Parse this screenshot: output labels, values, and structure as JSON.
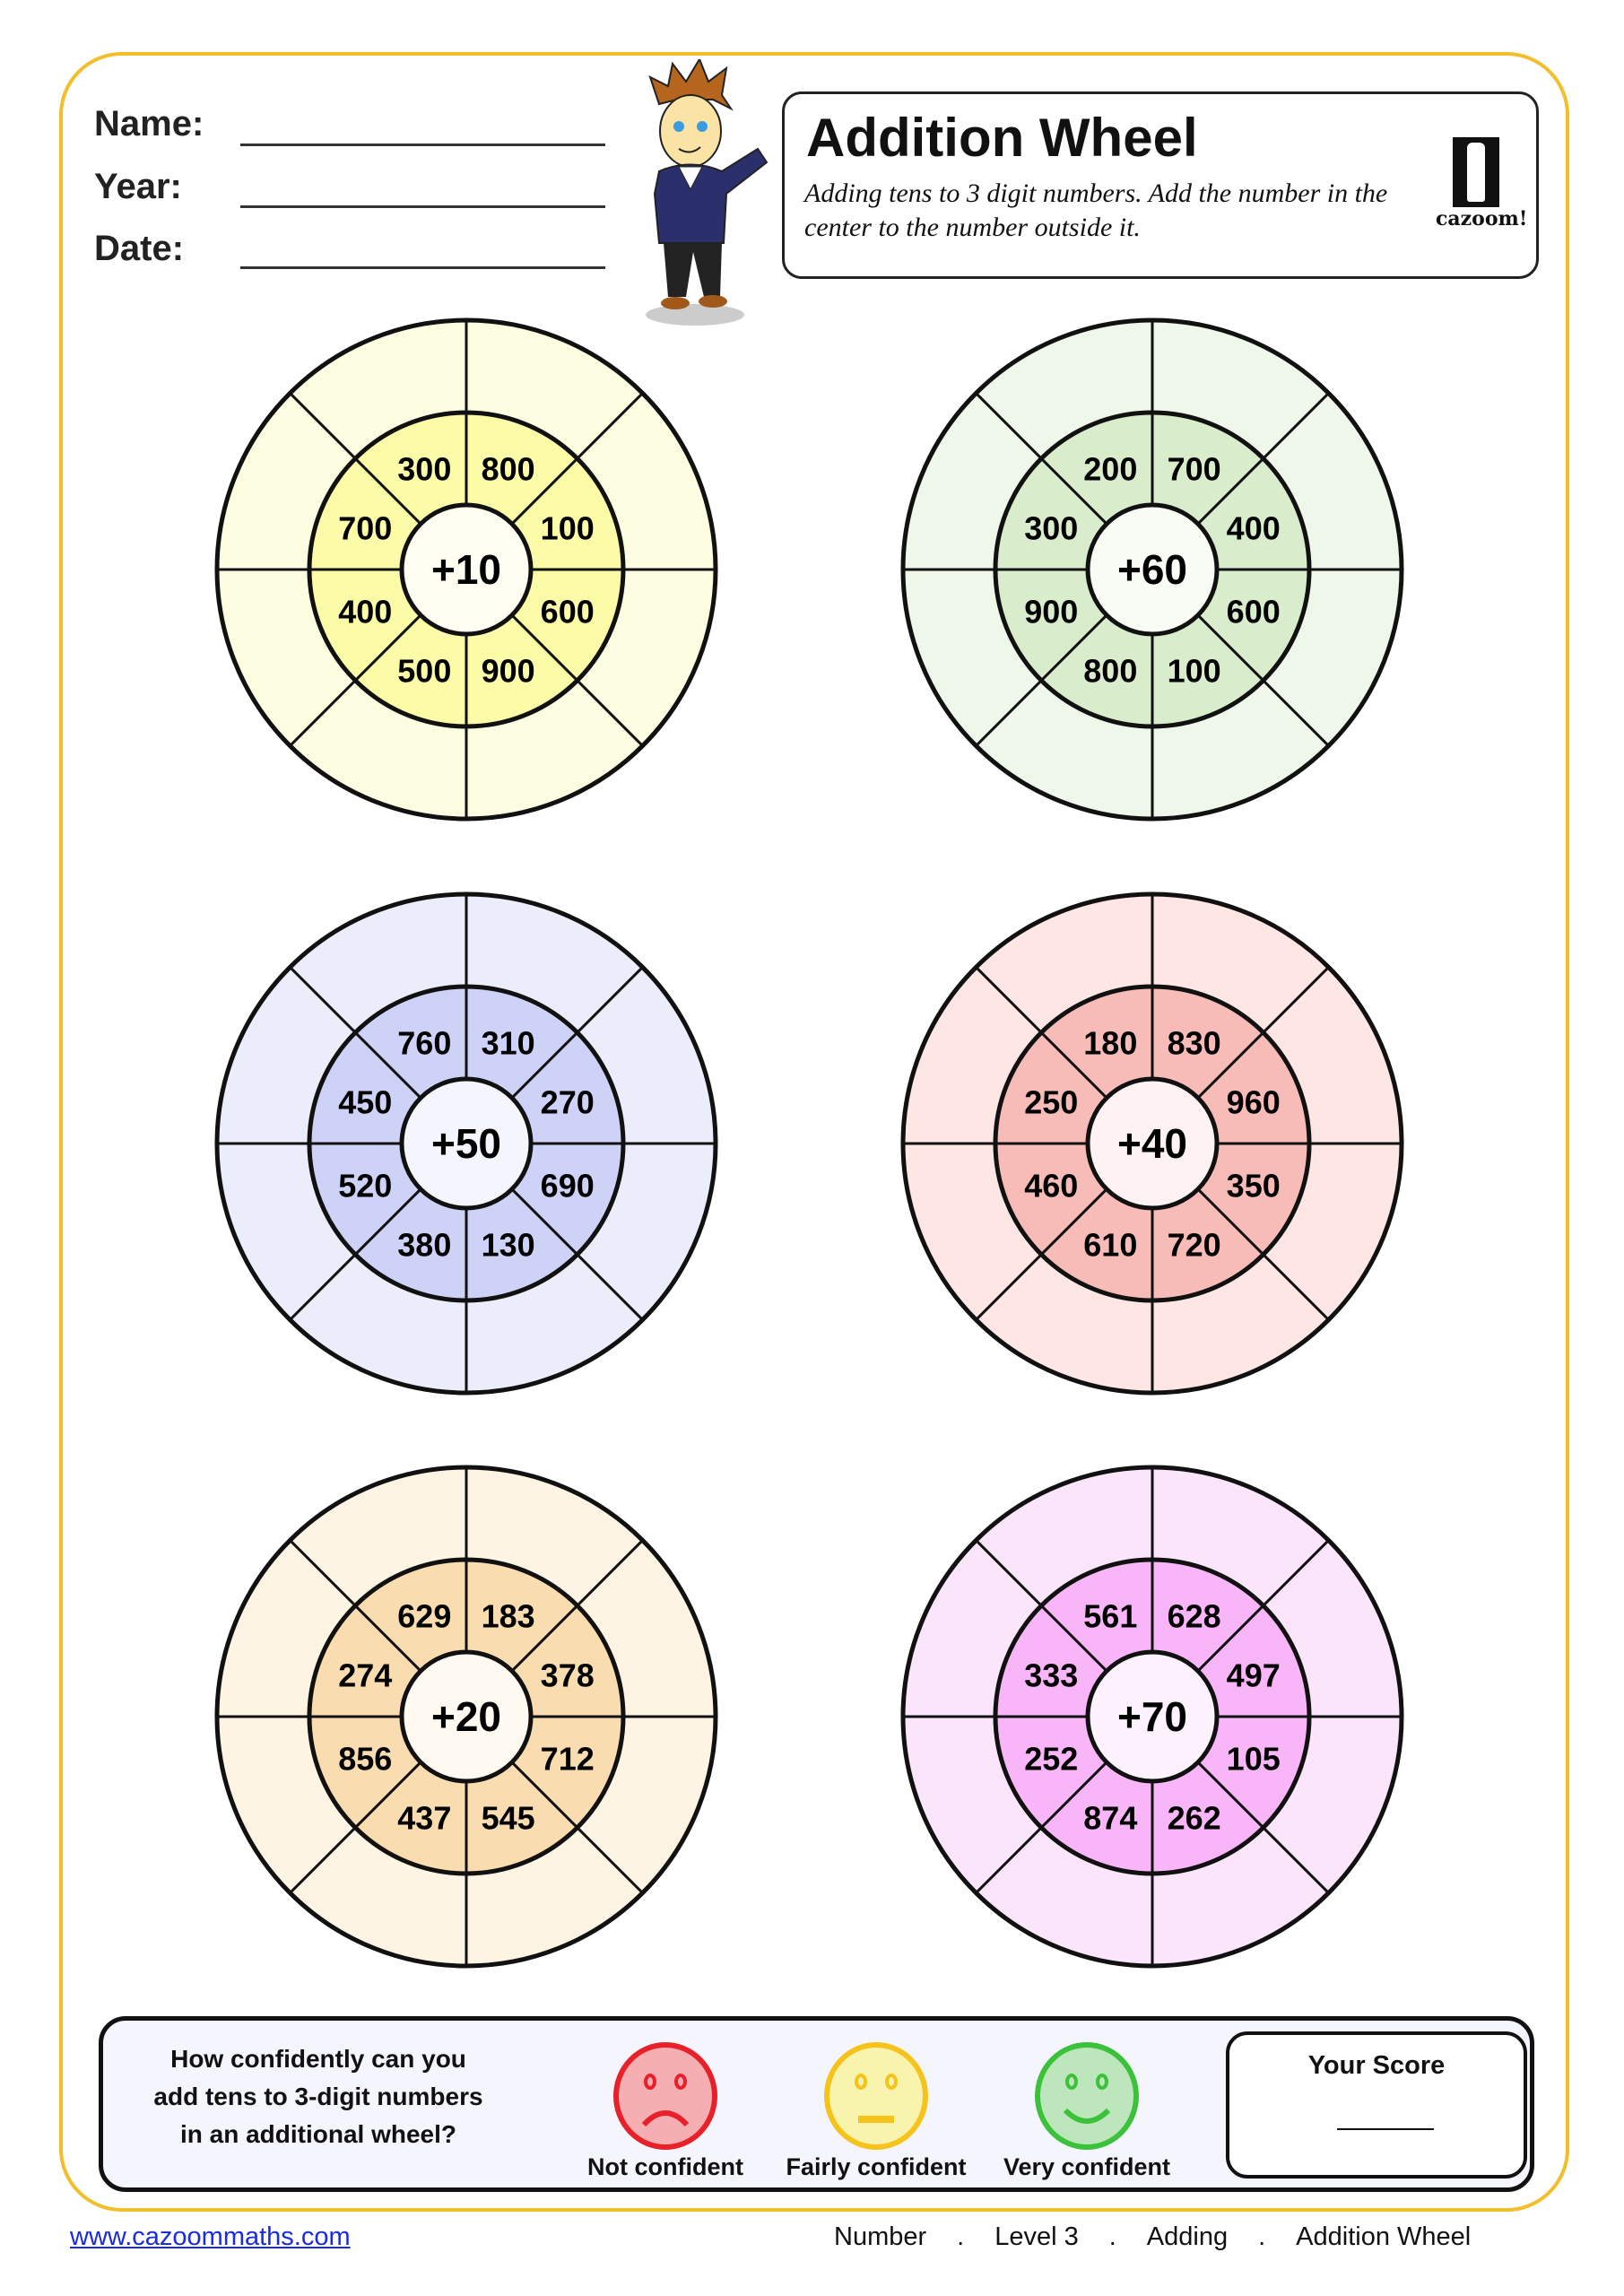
{
  "header": {
    "fields": [
      {
        "label": "Name:"
      },
      {
        "label": "Year:"
      },
      {
        "label": "Date:"
      }
    ],
    "title": "Addition Wheel",
    "subtitle": "Adding tens to 3 digit numbers. Add the number in the center to the number outside it.",
    "logo_text": "cazoom!"
  },
  "wheels": [
    {
      "center": "+10",
      "numbers": [
        "300",
        "800",
        "100",
        "600",
        "900",
        "500",
        "400",
        "700"
      ],
      "outer_color": "#fdfde2",
      "inner_color": "#fbfba8",
      "center_color": "#fefef2"
    },
    {
      "center": "+60",
      "numbers": [
        "200",
        "700",
        "400",
        "600",
        "100",
        "800",
        "900",
        "300"
      ],
      "outer_color": "#eff7ea",
      "inner_color": "#d9eccc",
      "center_color": "#f8fcf5"
    },
    {
      "center": "+50",
      "numbers": [
        "760",
        "310",
        "270",
        "690",
        "130",
        "380",
        "520",
        "450"
      ],
      "outer_color": "#ebedfb",
      "inner_color": "#cfd2f7",
      "center_color": "#f5f6fd"
    },
    {
      "center": "+40",
      "numbers": [
        "180",
        "830",
        "960",
        "350",
        "720",
        "610",
        "460",
        "250"
      ],
      "outer_color": "#fde6e4",
      "inner_color": "#f8bcb8",
      "center_color": "#fef3f2"
    },
    {
      "center": "+20",
      "numbers": [
        "629",
        "183",
        "378",
        "712",
        "545",
        "437",
        "856",
        "274"
      ],
      "outer_color": "#fdf4e3",
      "inner_color": "#f9ddb0",
      "center_color": "#fefaf2"
    },
    {
      "center": "+70",
      "numbers": [
        "561",
        "628",
        "497",
        "105",
        "262",
        "874",
        "252",
        "333"
      ],
      "outer_color": "#fbe5fb",
      "inner_color": "#f8b6f8",
      "center_color": "#fdf2fd"
    }
  ],
  "confidence": {
    "question_lines": [
      "How confidently can you",
      "add tens to 3-digit numbers",
      "in an additional wheel?"
    ],
    "options": [
      {
        "label": "Not confident",
        "icon": "sad-face-icon",
        "stroke": "#e8202a",
        "fill": "#f5aeb2"
      },
      {
        "label": "Fairly confident",
        "icon": "neutral-face-icon",
        "stroke": "#f6c21c",
        "fill": "#f8f4ad"
      },
      {
        "label": "Very confident",
        "icon": "happy-face-icon",
        "stroke": "#3cc23a",
        "fill": "#bde6bd"
      }
    ],
    "score_title": "Your Score"
  },
  "footer": {
    "link": "www.cazoommaths.com",
    "crumbs": [
      "Number",
      ".",
      "Level 3",
      ".",
      "Adding",
      ".",
      "Addition Wheel"
    ]
  },
  "colors": {
    "frame": "#f2bf2a",
    "link": "#1a2be0"
  }
}
